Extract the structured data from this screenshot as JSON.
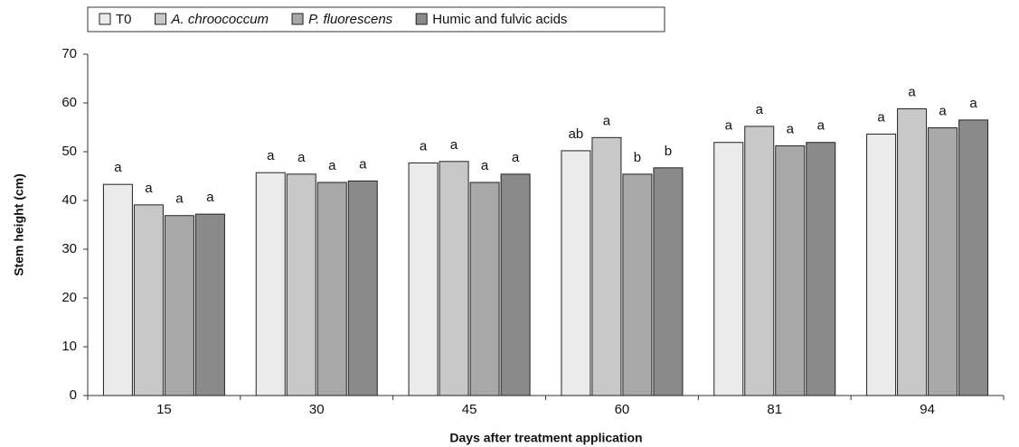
{
  "chart_data": {
    "type": "bar",
    "x_label": "Days after treatment application",
    "y_label": "Stem height (cm)",
    "categories": [
      "15",
      "30",
      "45",
      "60",
      "81",
      "94"
    ],
    "ylim": [
      0,
      70
    ],
    "yticks": [
      0,
      10,
      20,
      30,
      40,
      50,
      60,
      70
    ],
    "grid": false,
    "legend": "top-left",
    "series": [
      {
        "name": "T0",
        "color": "#ebebeb",
        "italic": false,
        "values": [
          43.3,
          45.7,
          47.7,
          50.2,
          51.9,
          53.6
        ],
        "letters": [
          "a",
          "a",
          "a",
          "ab",
          "a",
          "a"
        ]
      },
      {
        "name": "A. chroococcum",
        "color": "#c8c8c8",
        "italic": true,
        "values": [
          39.1,
          45.4,
          48.0,
          52.9,
          55.2,
          58.8
        ],
        "letters": [
          "a",
          "a",
          "a",
          "a",
          "a",
          "a"
        ]
      },
      {
        "name": "P. fluorescens",
        "color": "#a8a8a8",
        "italic": true,
        "values": [
          36.9,
          43.7,
          43.7,
          45.4,
          51.2,
          54.9
        ],
        "letters": [
          "a",
          "a",
          "a",
          "b",
          "a",
          "a"
        ]
      },
      {
        "name": "Humic and fulvic acids",
        "color": "#8a8a8a",
        "italic": false,
        "values": [
          37.2,
          44.0,
          45.4,
          46.7,
          51.9,
          56.5
        ],
        "letters": [
          "a",
          "a",
          "a",
          "b",
          "a",
          "a"
        ]
      }
    ]
  }
}
